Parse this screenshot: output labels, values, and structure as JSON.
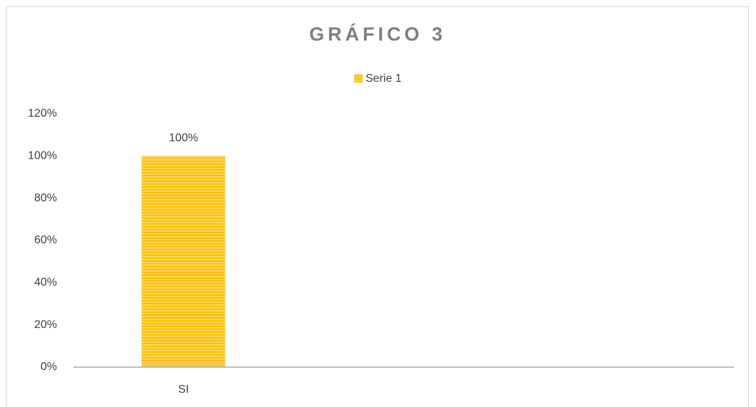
{
  "chart_data": {
    "type": "bar",
    "title": "GRÁFICO 3",
    "categories": [
      "SI",
      null,
      null
    ],
    "series": [
      {
        "name": "Serie 1",
        "color": "#ffc000",
        "values": [
          100,
          null,
          null
        ],
        "value_labels": [
          "100%",
          null,
          null
        ]
      }
    ],
    "ylim": [
      0,
      120
    ],
    "yticks": [
      {
        "value": 0,
        "label": "0%"
      },
      {
        "value": 20,
        "label": "20%"
      },
      {
        "value": 40,
        "label": "40%"
      },
      {
        "value": 60,
        "label": "60%"
      },
      {
        "value": 80,
        "label": "80%"
      },
      {
        "value": 100,
        "label": "100%"
      },
      {
        "value": 120,
        "label": "120%"
      }
    ],
    "grid": false,
    "legend": "top"
  }
}
